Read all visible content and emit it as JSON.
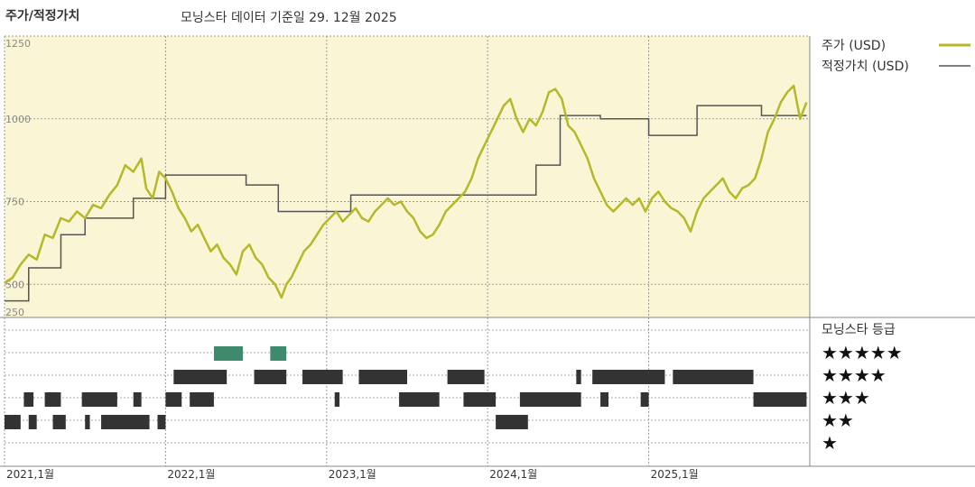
{
  "header": {
    "title": "주가/적정가치",
    "subtitle": "모닝스타 데이터 기준일 29. 12월 2025"
  },
  "legend": {
    "price_label": "주가 (USD)",
    "fair_label": "적정가치 (USD)",
    "rating_title": "모닝스타 등급",
    "stars": [
      "★★★★★",
      "★★★★",
      "★★★",
      "★★",
      "★"
    ]
  },
  "colors": {
    "panel_bg": "#faf5d4",
    "price": "#b5b82a",
    "fair": "#555555",
    "grid": "#999999",
    "rating_dark": "#333333",
    "rating_5star": "#3f8a6c"
  },
  "chart_data": {
    "type": "line",
    "x_labels": [
      "2021,1월",
      "2022,1월",
      "2023,1월",
      "2024,1월",
      "2025,1월"
    ],
    "x_ticks": [
      2021.0,
      2022.0,
      2023.0,
      2024.0,
      2025.0
    ],
    "xlim": [
      2021.0,
      2026.0
    ],
    "y_ticks": [
      250,
      500,
      750,
      1000,
      1250
    ],
    "ylim": [
      400,
      1250
    ],
    "series": [
      {
        "name": "주가 (USD)",
        "points": [
          [
            2021.0,
            505
          ],
          [
            2021.05,
            520
          ],
          [
            2021.1,
            560
          ],
          [
            2021.15,
            590
          ],
          [
            2021.2,
            575
          ],
          [
            2021.25,
            650
          ],
          [
            2021.3,
            640
          ],
          [
            2021.35,
            700
          ],
          [
            2021.4,
            690
          ],
          [
            2021.45,
            720
          ],
          [
            2021.5,
            700
          ],
          [
            2021.55,
            740
          ],
          [
            2021.6,
            730
          ],
          [
            2021.65,
            770
          ],
          [
            2021.7,
            800
          ],
          [
            2021.75,
            860
          ],
          [
            2021.8,
            840
          ],
          [
            2021.85,
            880
          ],
          [
            2021.88,
            790
          ],
          [
            2021.92,
            760
          ],
          [
            2021.96,
            840
          ],
          [
            2022.0,
            820
          ],
          [
            2022.04,
            780
          ],
          [
            2022.08,
            730
          ],
          [
            2022.12,
            700
          ],
          [
            2022.16,
            660
          ],
          [
            2022.2,
            680
          ],
          [
            2022.24,
            640
          ],
          [
            2022.28,
            600
          ],
          [
            2022.32,
            620
          ],
          [
            2022.36,
            580
          ],
          [
            2022.4,
            560
          ],
          [
            2022.44,
            530
          ],
          [
            2022.48,
            600
          ],
          [
            2022.52,
            620
          ],
          [
            2022.56,
            580
          ],
          [
            2022.6,
            560
          ],
          [
            2022.64,
            520
          ],
          [
            2022.68,
            500
          ],
          [
            2022.72,
            460
          ],
          [
            2022.75,
            500
          ],
          [
            2022.78,
            520
          ],
          [
            2022.82,
            560
          ],
          [
            2022.86,
            600
          ],
          [
            2022.9,
            620
          ],
          [
            2022.94,
            650
          ],
          [
            2022.98,
            680
          ],
          [
            2023.02,
            700
          ],
          [
            2023.06,
            720
          ],
          [
            2023.1,
            690
          ],
          [
            2023.14,
            710
          ],
          [
            2023.18,
            730
          ],
          [
            2023.22,
            700
          ],
          [
            2023.26,
            690
          ],
          [
            2023.3,
            720
          ],
          [
            2023.34,
            740
          ],
          [
            2023.38,
            760
          ],
          [
            2023.42,
            740
          ],
          [
            2023.46,
            750
          ],
          [
            2023.5,
            720
          ],
          [
            2023.54,
            700
          ],
          [
            2023.58,
            660
          ],
          [
            2023.62,
            640
          ],
          [
            2023.66,
            650
          ],
          [
            2023.7,
            680
          ],
          [
            2023.74,
            720
          ],
          [
            2023.78,
            740
          ],
          [
            2023.82,
            760
          ],
          [
            2023.86,
            780
          ],
          [
            2023.9,
            820
          ],
          [
            2023.94,
            880
          ],
          [
            2023.98,
            920
          ],
          [
            2024.02,
            960
          ],
          [
            2024.06,
            1000
          ],
          [
            2024.1,
            1040
          ],
          [
            2024.14,
            1060
          ],
          [
            2024.18,
            1000
          ],
          [
            2024.22,
            960
          ],
          [
            2024.26,
            1000
          ],
          [
            2024.3,
            980
          ],
          [
            2024.34,
            1020
          ],
          [
            2024.38,
            1080
          ],
          [
            2024.42,
            1090
          ],
          [
            2024.46,
            1060
          ],
          [
            2024.5,
            980
          ],
          [
            2024.54,
            960
          ],
          [
            2024.58,
            920
          ],
          [
            2024.62,
            880
          ],
          [
            2024.66,
            820
          ],
          [
            2024.7,
            780
          ],
          [
            2024.74,
            740
          ],
          [
            2024.78,
            720
          ],
          [
            2024.82,
            740
          ],
          [
            2024.86,
            760
          ],
          [
            2024.9,
            740
          ],
          [
            2024.94,
            760
          ],
          [
            2024.98,
            720
          ],
          [
            2025.02,
            760
          ],
          [
            2025.06,
            780
          ],
          [
            2025.1,
            750
          ],
          [
            2025.14,
            730
          ],
          [
            2025.18,
            720
          ],
          [
            2025.22,
            700
          ],
          [
            2025.26,
            660
          ],
          [
            2025.3,
            720
          ],
          [
            2025.34,
            760
          ],
          [
            2025.38,
            780
          ],
          [
            2025.42,
            800
          ],
          [
            2025.46,
            820
          ],
          [
            2025.5,
            780
          ],
          [
            2025.54,
            760
          ],
          [
            2025.58,
            790
          ],
          [
            2025.62,
            800
          ],
          [
            2025.66,
            820
          ],
          [
            2025.7,
            880
          ],
          [
            2025.74,
            960
          ],
          [
            2025.78,
            1000
          ],
          [
            2025.82,
            1050
          ],
          [
            2025.86,
            1080
          ],
          [
            2025.9,
            1100
          ],
          [
            2025.94,
            1000
          ],
          [
            2025.98,
            1050
          ]
        ]
      },
      {
        "name": "적정가치 (USD)",
        "steps": [
          [
            2021.0,
            450
          ],
          [
            2021.15,
            550
          ],
          [
            2021.35,
            650
          ],
          [
            2021.5,
            700
          ],
          [
            2021.8,
            760
          ],
          [
            2022.0,
            830
          ],
          [
            2022.5,
            800
          ],
          [
            2022.7,
            720
          ],
          [
            2023.15,
            770
          ],
          [
            2023.5,
            770
          ],
          [
            2024.0,
            770
          ],
          [
            2024.3,
            860
          ],
          [
            2024.45,
            1010
          ],
          [
            2024.7,
            1000
          ],
          [
            2025.0,
            950
          ],
          [
            2025.3,
            1040
          ],
          [
            2025.7,
            1010
          ],
          [
            2025.98,
            1010
          ]
        ]
      }
    ],
    "ratings": {
      "5": [
        [
          2022.3,
          2022.48
        ],
        [
          2022.65,
          2022.75
        ]
      ],
      "4": [
        [
          2022.05,
          2022.38
        ],
        [
          2022.55,
          2022.75
        ],
        [
          2022.85,
          2023.1
        ],
        [
          2023.2,
          2023.5
        ],
        [
          2023.75,
          2023.98
        ],
        [
          2024.55,
          2024.58
        ],
        [
          2024.65,
          2025.1
        ],
        [
          2025.15,
          2025.65
        ]
      ],
      "3": [
        [
          2021.12,
          2021.18
        ],
        [
          2021.25,
          2021.35
        ],
        [
          2021.48,
          2021.7
        ],
        [
          2021.8,
          2021.85
        ],
        [
          2022.0,
          2022.1
        ],
        [
          2022.15,
          2022.3
        ],
        [
          2023.05,
          2023.08
        ],
        [
          2023.45,
          2023.7
        ],
        [
          2023.85,
          2024.05
        ],
        [
          2024.2,
          2024.58
        ],
        [
          2024.7,
          2024.75
        ],
        [
          2024.95,
          2025.0
        ],
        [
          2025.65,
          2025.98
        ]
      ],
      "2": [
        [
          2021.0,
          2021.1
        ],
        [
          2021.15,
          2021.2
        ],
        [
          2021.3,
          2021.38
        ],
        [
          2021.5,
          2021.53
        ],
        [
          2021.6,
          2021.9
        ],
        [
          2021.95,
          2022.0
        ],
        [
          2024.05,
          2024.25
        ]
      ],
      "1": []
    }
  }
}
